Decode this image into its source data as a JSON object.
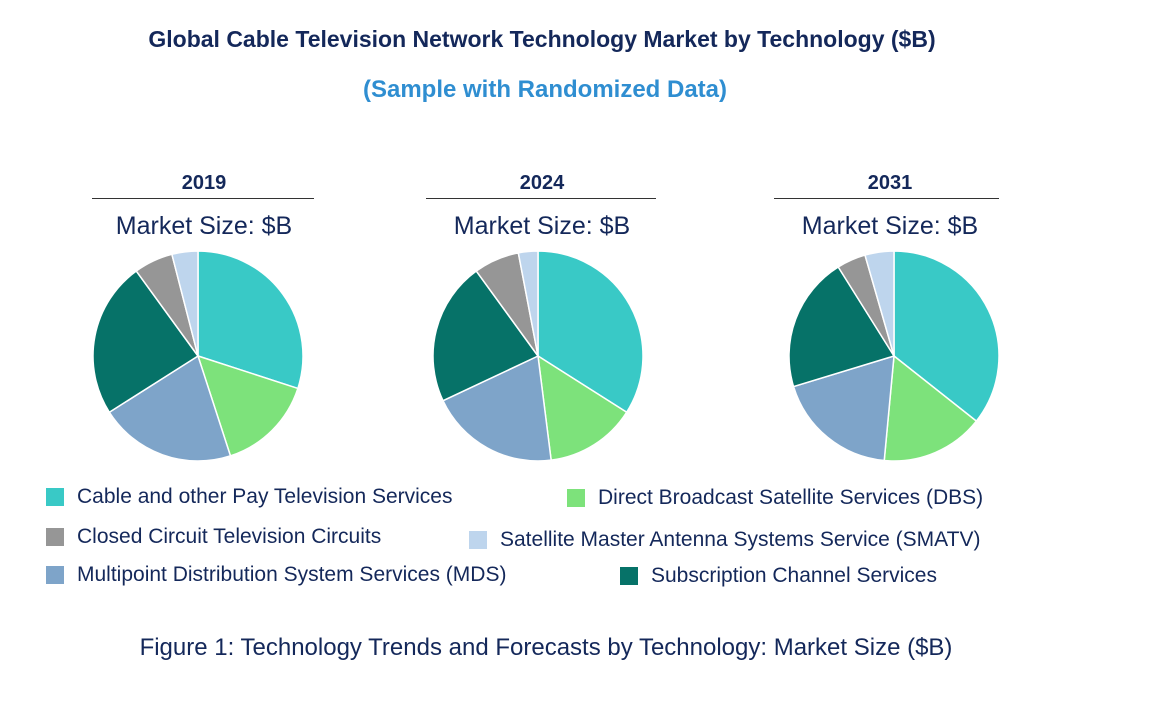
{
  "chart_data": {
    "type": "pie",
    "title": "Global Cable Television Network Technology Market by Technology ($B)",
    "subtitle": "(Sample with Randomized Data)",
    "caption": "Figure 1: Technology Trends and Forecasts by Technology: Market Size ($B)",
    "categories": [
      "Cable and other Pay Television  Services",
      "Direct Broadcast Satellite Services  (DBS)",
      "Multipoint Distribution System Services (MDS)",
      "Subscription Channel Services",
      "Closed Circuit Television  Circuits",
      "Satellite Master Antenna Systems Service  (SMATV)"
    ],
    "colors": [
      "#39c9c6",
      "#7de27b",
      "#7ea4c9",
      "#067268",
      "#969696",
      "#bed5ed"
    ],
    "pies": [
      {
        "year": "2019",
        "market_size_label": "Market Size: $B",
        "values": [
          30,
          15,
          21,
          24,
          6,
          4
        ]
      },
      {
        "year": "2024",
        "market_size_label": "Market Size: $B",
        "values": [
          34,
          14,
          20,
          22,
          7,
          3
        ]
      },
      {
        "year": "2031",
        "market_size_label": "Market Size: $B",
        "values": [
          36,
          16,
          19,
          21,
          4.5,
          4.5
        ]
      }
    ]
  }
}
